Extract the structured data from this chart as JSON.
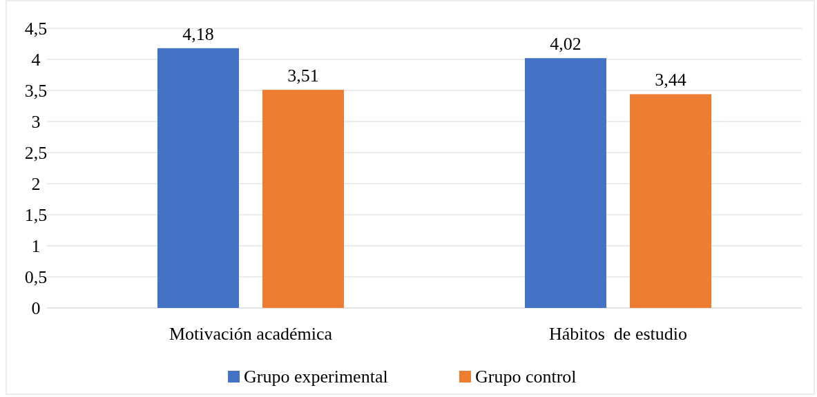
{
  "chart_data": {
    "type": "bar",
    "categories": [
      "Motivación académica",
      "Hábitos  de estudio"
    ],
    "series": [
      {
        "name": "Grupo experimental",
        "color": "#4472c4",
        "values": [
          4.18,
          4.02
        ],
        "value_labels": [
          "4,18",
          "4,02"
        ]
      },
      {
        "name": "Grupo control",
        "color": "#ed7d31",
        "values": [
          3.51,
          3.44
        ],
        "value_labels": [
          "3,51",
          "3,44"
        ]
      }
    ],
    "ylim": [
      0,
      4.5
    ],
    "yticks": [
      0,
      {
        "value": 0.5,
        "label": "0,5"
      },
      1,
      {
        "value": 1.5,
        "label": "1,5"
      },
      2,
      {
        "value": 2.5,
        "label": "2,5"
      },
      3,
      {
        "value": 3.5,
        "label": "3,5"
      },
      4,
      {
        "value": 4.5,
        "label": "4,5"
      }
    ],
    "grid": "y",
    "legend": "bottom"
  }
}
